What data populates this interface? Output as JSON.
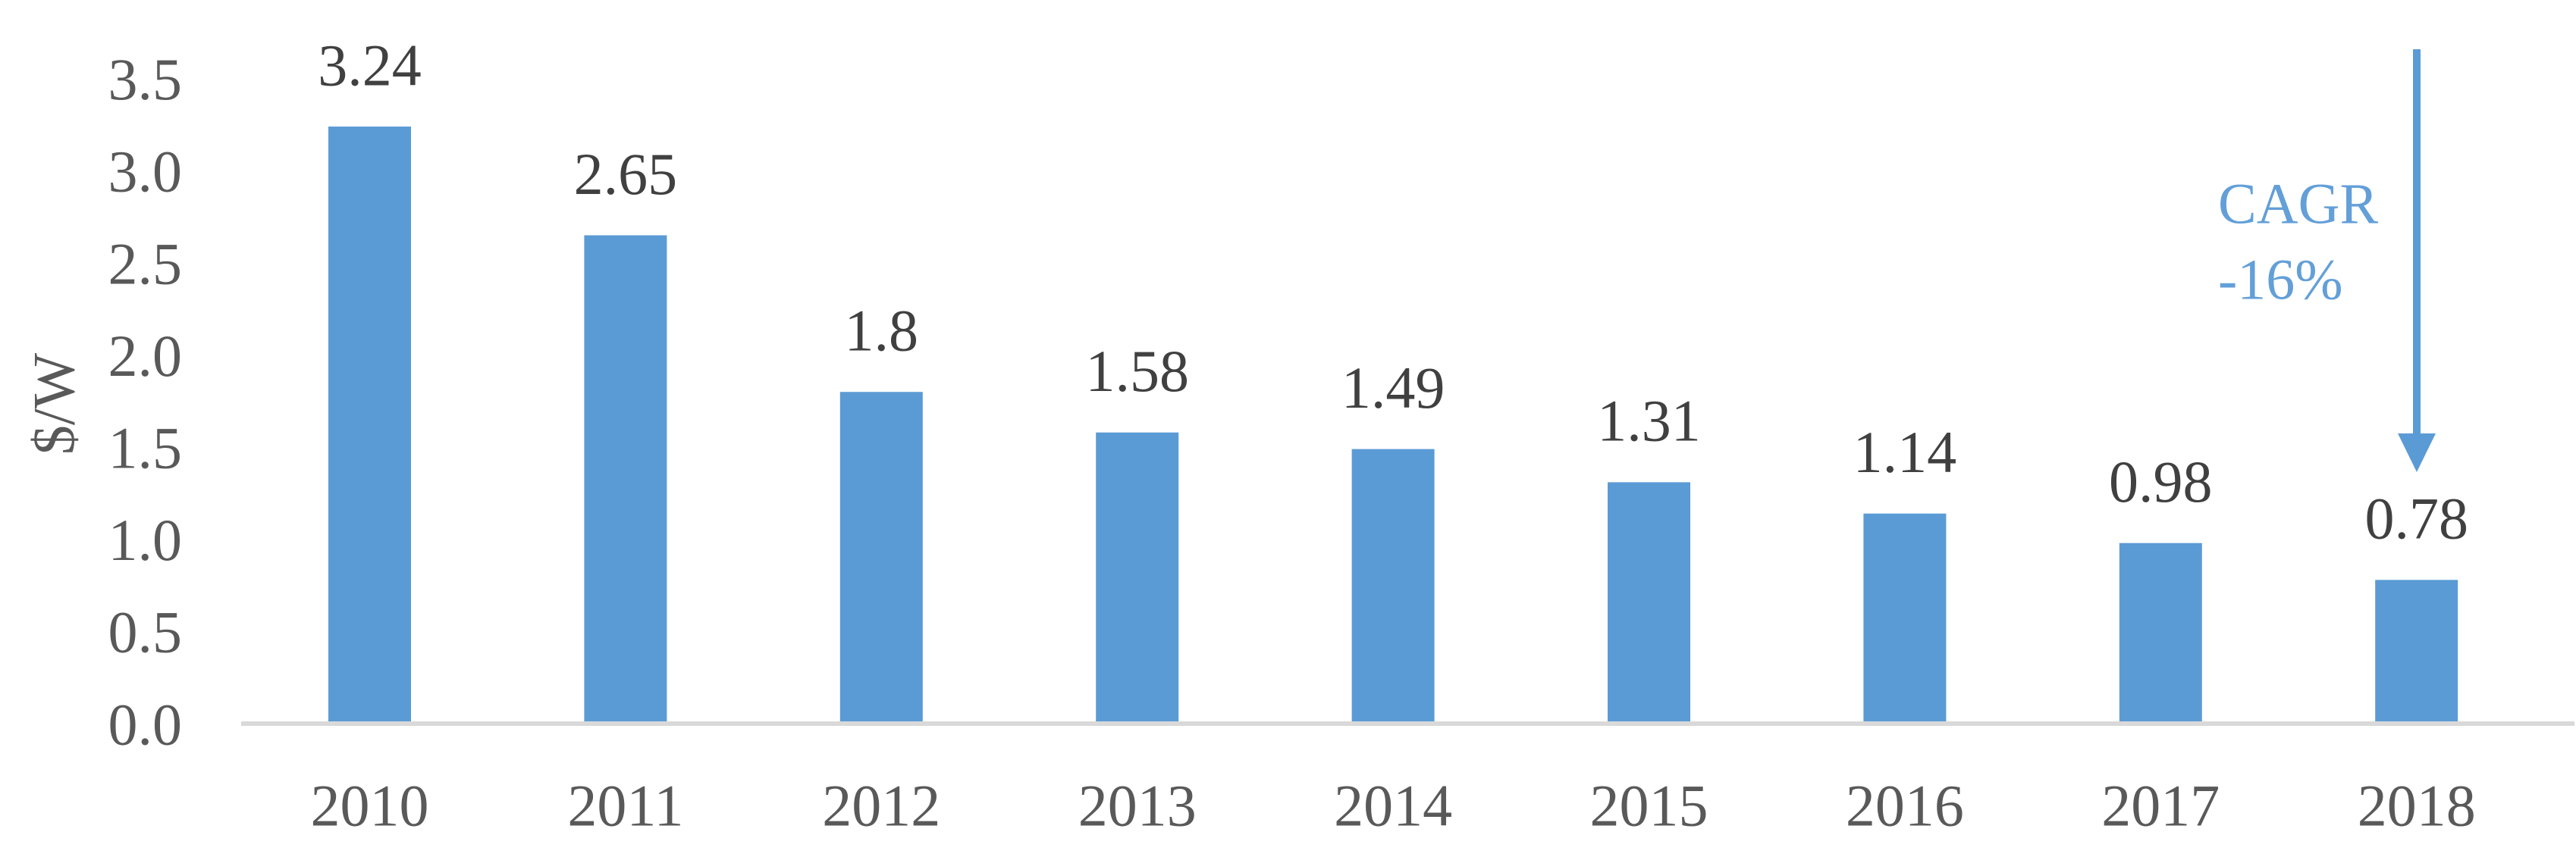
{
  "chart_data": {
    "type": "bar",
    "title": "",
    "categories": [
      "2010",
      "2011",
      "2012",
      "2013",
      "2014",
      "2015",
      "2016",
      "2017",
      "2018"
    ],
    "values": [
      3.24,
      2.65,
      1.8,
      1.58,
      1.49,
      1.31,
      1.14,
      0.98,
      0.78
    ],
    "data_labels": [
      "3.24",
      "2.65",
      "1.8",
      "1.58",
      "1.49",
      "1.31",
      "1.14",
      "0.98",
      "0.78"
    ],
    "xlabel": "",
    "ylabel": "$/W",
    "y_ticks": [
      "0.0",
      "0.5",
      "1.0",
      "1.5",
      "2.0",
      "2.5",
      "3.0",
      "3.5"
    ],
    "ylim": [
      0,
      3.5
    ],
    "grid": false,
    "legend_position": "none",
    "colors": {
      "bar": "#5B9BD5",
      "arrow": "#5B9BD5",
      "annotation_text": "#639FD8",
      "axis_line": "#D9D9D9",
      "axis_tick_labels": "#595959",
      "data_labels": "#404040",
      "background": "#FFFFFF"
    },
    "annotation": {
      "line1": "CAGR",
      "line2": "-16%",
      "target_category": "2018",
      "arrow_direction": "down"
    }
  }
}
